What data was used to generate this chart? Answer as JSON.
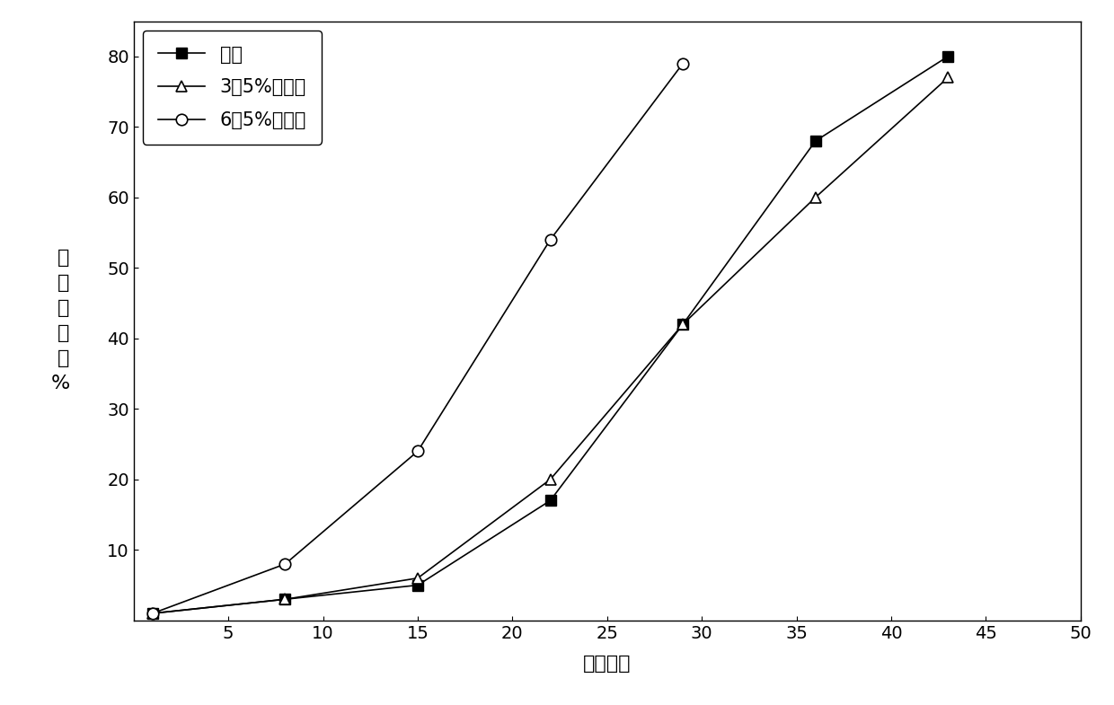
{
  "series": [
    {
      "label": "参比",
      "x": [
        1,
        8,
        15,
        22,
        29,
        36,
        43
      ],
      "y": [
        1,
        3,
        5,
        17,
        42,
        68,
        80
      ],
      "color": "#000000",
      "marker": "s",
      "marker_filled": true,
      "linewidth": 1.2,
      "markersize": 9
    },
    {
      "label": "3．5%滑石粉",
      "x": [
        1,
        8,
        15,
        22,
        29,
        36,
        43
      ],
      "y": [
        1,
        3,
        6,
        20,
        42,
        60,
        77
      ],
      "color": "#000000",
      "marker": "^",
      "marker_filled": false,
      "linewidth": 1.2,
      "markersize": 9
    },
    {
      "label": "6．5%滑石粉",
      "x": [
        1,
        8,
        15,
        22,
        29
      ],
      "y": [
        1,
        8,
        24,
        54,
        79
      ],
      "color": "#000000",
      "marker": "o",
      "marker_filled": false,
      "linewidth": 1.2,
      "markersize": 9
    }
  ],
  "xlim": [
    0,
    50
  ],
  "ylim": [
    0,
    85
  ],
  "xticks": [
    5,
    10,
    15,
    20,
    25,
    30,
    35,
    40,
    45,
    50
  ],
  "yticks": [
    10,
    20,
    30,
    40,
    50,
    60,
    70,
    80
  ],
  "xlabel": "时间，天",
  "ylabel": "累\n积\n溶\n出\n率\n%",
  "background_color": "#ffffff",
  "legend_loc": "upper left",
  "font_size": 15,
  "tick_font_size": 14,
  "label_font_size": 16
}
